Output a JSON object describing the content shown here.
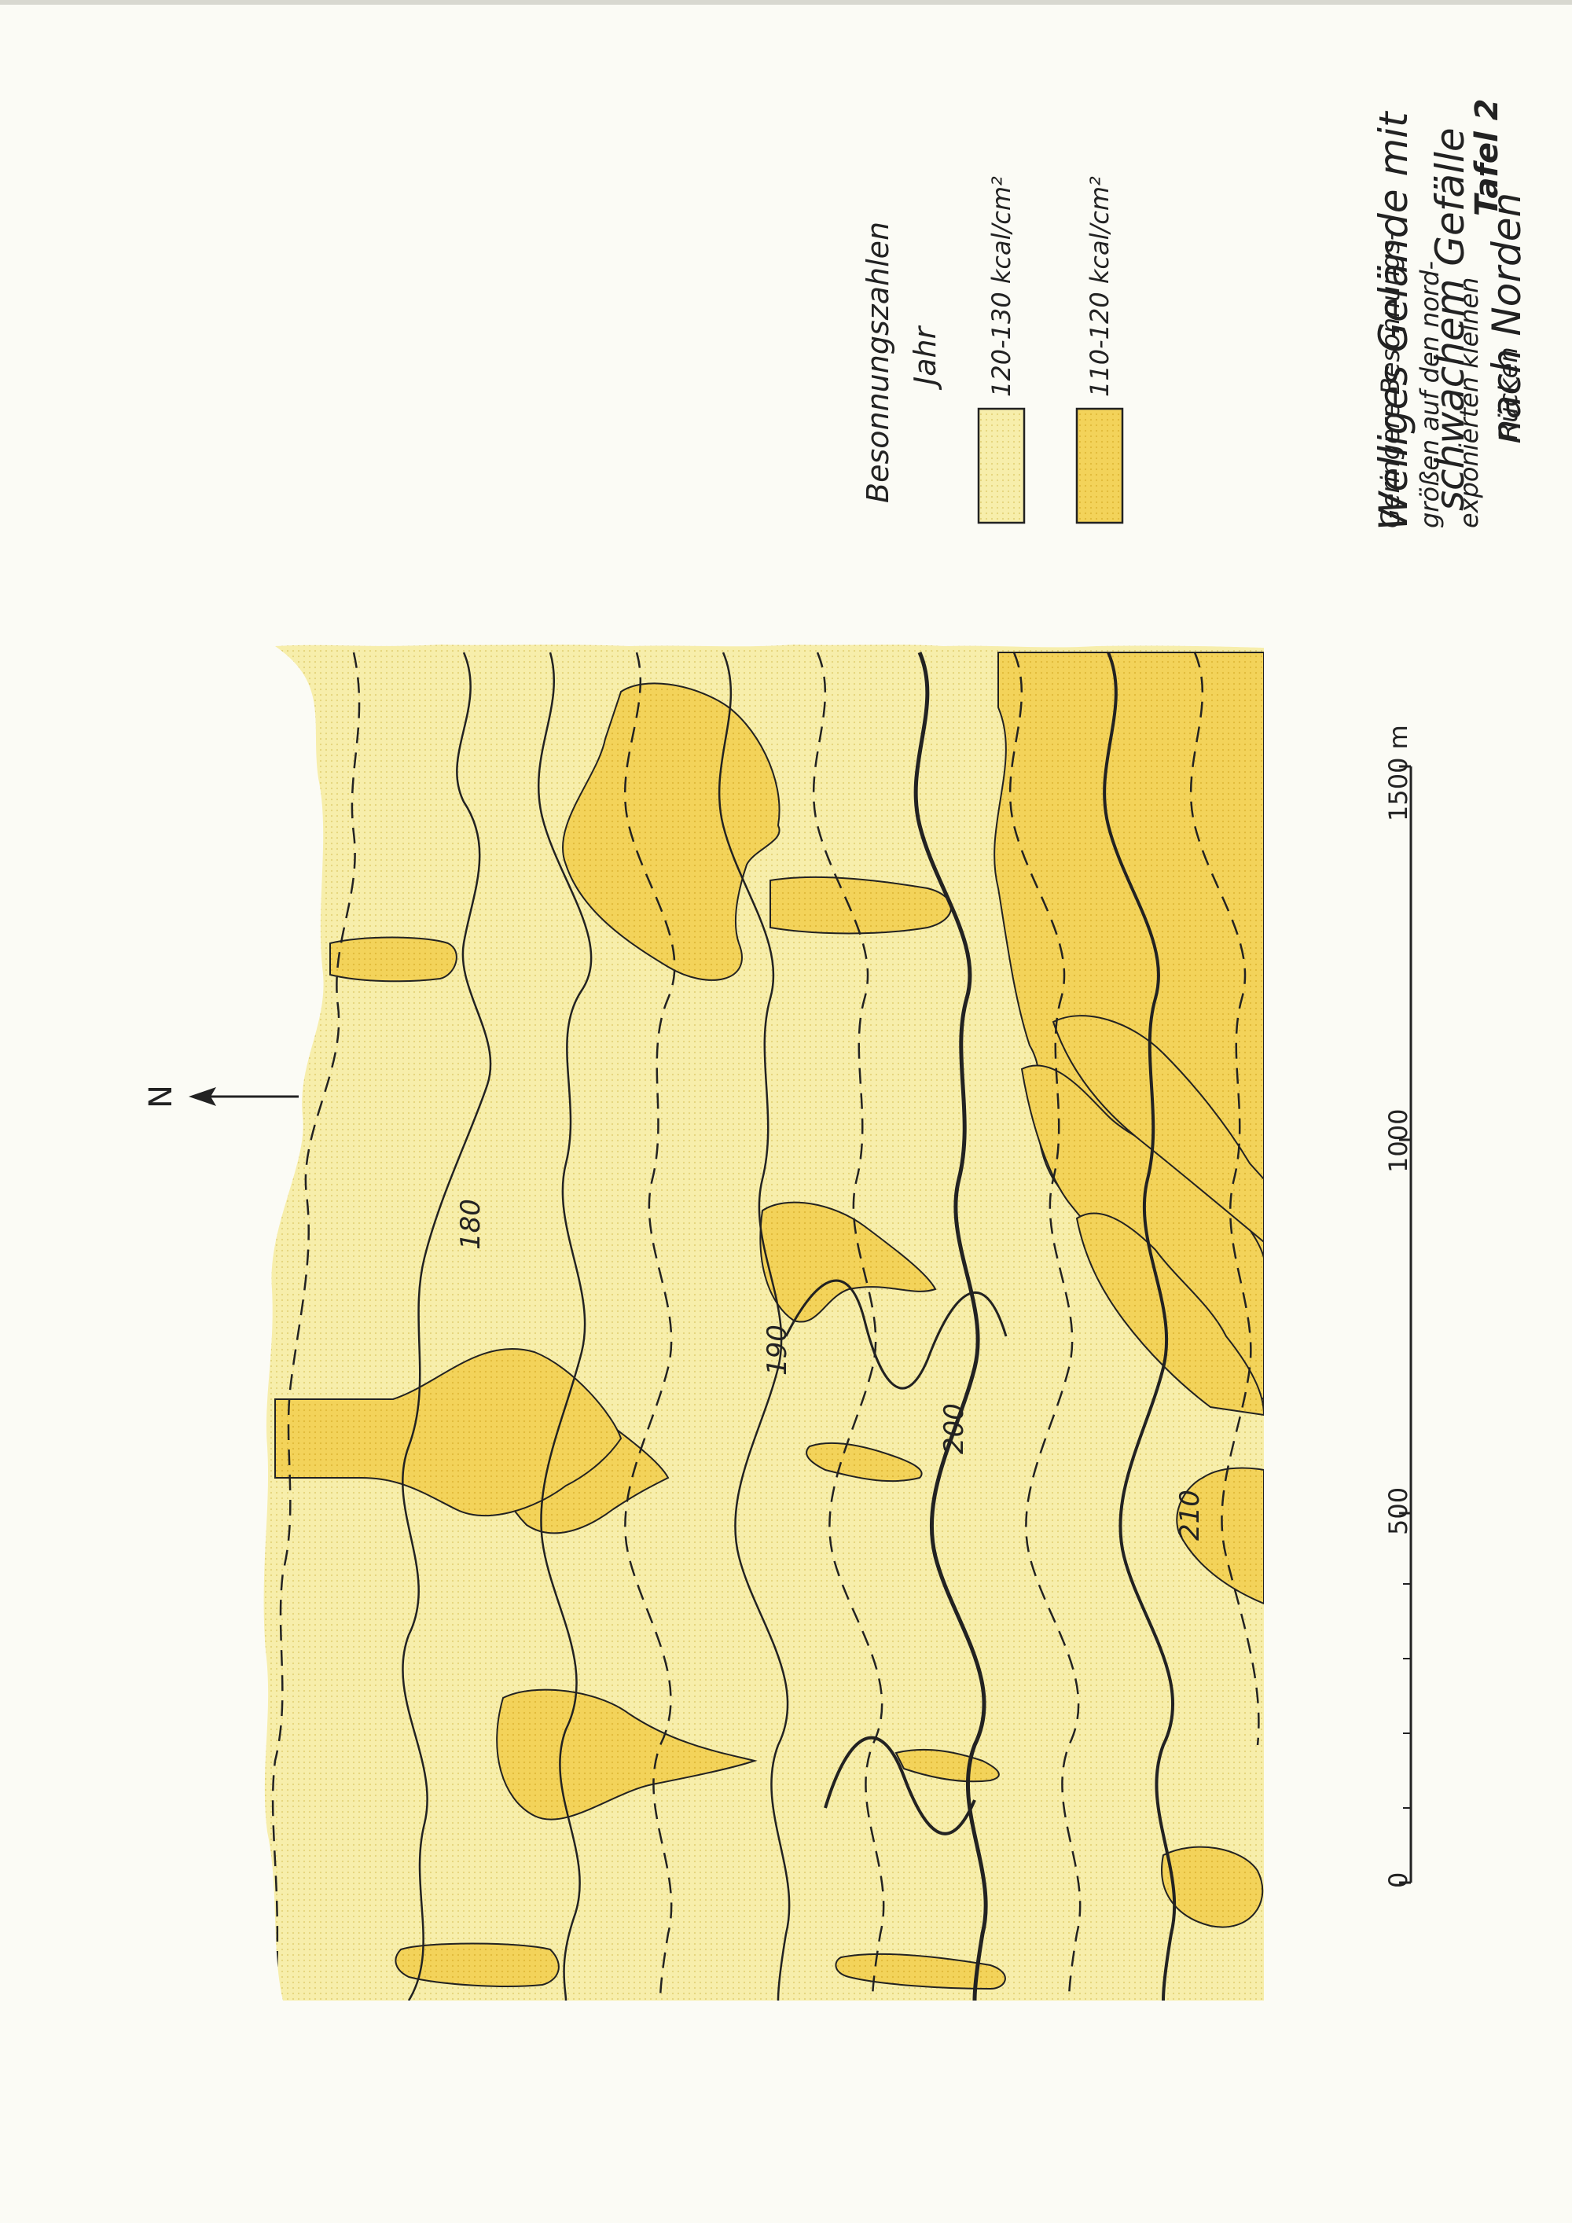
{
  "plate": {
    "label": "Tafel 2"
  },
  "legend": {
    "title_lines": [
      "Welliges Gelände mit",
      "schwachem Gefälle",
      "nach Norden"
    ],
    "subtitle_lines": [
      "Geringere Besonnungs-",
      "größen auf den nord-",
      "exponierten kleinen",
      "Rücken"
    ],
    "key_title_lines": [
      "Besonnungszahlen",
      "Jahr"
    ],
    "items": [
      {
        "label": "120-130 kcal/cm²",
        "color": "#f7eeab"
      },
      {
        "label": "110-120 kcal/cm²",
        "color": "#f3d35a"
      }
    ]
  },
  "north_arrow": {
    "label": "N"
  },
  "contours": {
    "labels": [
      "180",
      "190",
      "200",
      "210"
    ]
  },
  "scale_bar": {
    "ticks": [
      "0",
      "500",
      "1000",
      "1500 m"
    ]
  },
  "colors": {
    "light_zone": "#f7eeab",
    "dark_zone": "#f3d35a",
    "line": "#222222"
  }
}
